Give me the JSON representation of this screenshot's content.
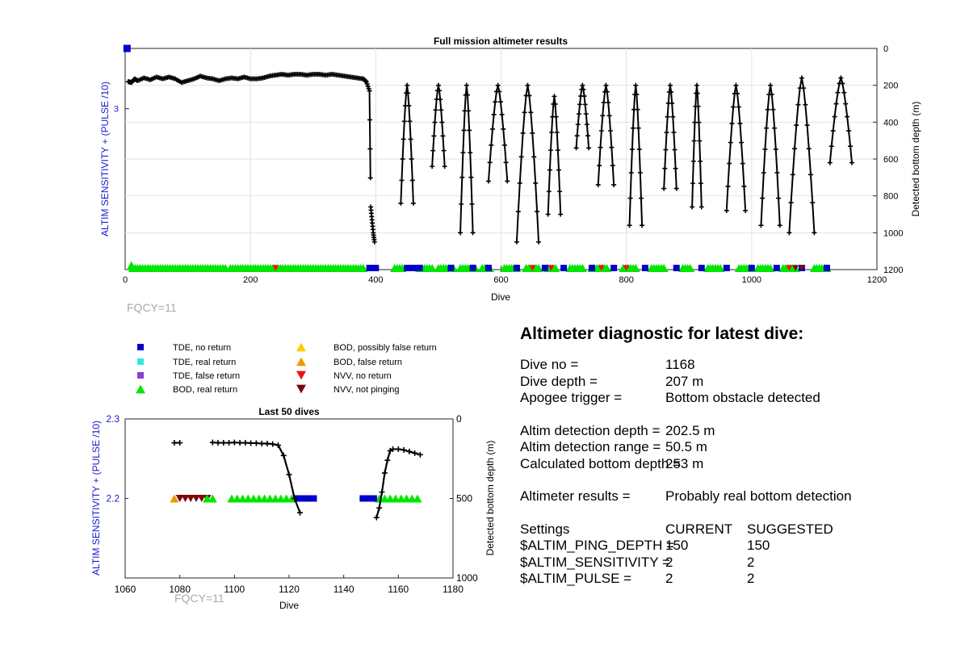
{
  "colors": {
    "tde_no_return": "#0000cc",
    "tde_real_return": "#33e6e6",
    "tde_false_return": "#8a3fcf",
    "bod_real_return": "#00e600",
    "bod_possibly_false": "#ffcc00",
    "bod_false_return": "#ee9900",
    "nvv_no_return": "#ee1111",
    "nvv_not_pinging": "#7a0a0a",
    "left_axis": "#1a1acc",
    "trace": "#000000"
  },
  "legend": [
    {
      "label": "TDE, no return",
      "marker": "square",
      "color": "#0000cc"
    },
    {
      "label": "TDE, real return",
      "marker": "square",
      "color": "#33e6e6"
    },
    {
      "label": "TDE, false return",
      "marker": "square",
      "color": "#8a3fcf"
    },
    {
      "label": "BOD, real return",
      "marker": "triangle-up",
      "color": "#00e600"
    },
    {
      "label": "BOD, possibly false return",
      "marker": "triangle-up",
      "color": "#ffcc00"
    },
    {
      "label": "BOD, false return",
      "marker": "triangle-up",
      "color": "#ee9900"
    },
    {
      "label": "NVV, no return",
      "marker": "triangle-down",
      "color": "#ee1111"
    },
    {
      "label": "NVV, not pinging",
      "marker": "triangle-down",
      "color": "#7a0a0a"
    }
  ],
  "chart_data": [
    {
      "type": "scatter",
      "title": "Full mission altimeter results",
      "xlabel": "Dive",
      "ylabel_left": "ALTIM SENSITIVITY + (PULSE /10)",
      "ylabel_right": "Detected bottom depth (m)",
      "xlim": [
        0,
        1200
      ],
      "xticks": [
        0,
        200,
        400,
        600,
        800,
        1000,
        1200
      ],
      "ylim_left": [
        2.2,
        3.3
      ],
      "yticks_left": [
        3
      ],
      "ylim_right": [
        1200,
        0
      ],
      "yticks_right": [
        0,
        200,
        400,
        600,
        800,
        1000,
        1200
      ],
      "grid": true,
      "annotation": "FQCY=11",
      "bottom_depth_series": {
        "name": "",
        "x": [
          5,
          10,
          15,
          20,
          30,
          40,
          50,
          60,
          70,
          80,
          90,
          100,
          110,
          120,
          130,
          140,
          150,
          160,
          170,
          180,
          190,
          200,
          210,
          220,
          230,
          240,
          250,
          260,
          270,
          280,
          290,
          300,
          310,
          320,
          330,
          340,
          350,
          360,
          370,
          380,
          385,
          390,
          392,
          394,
          396,
          398
        ],
        "y": [
          180,
          185,
          165,
          175,
          160,
          170,
          155,
          165,
          155,
          165,
          185,
          175,
          165,
          150,
          160,
          165,
          175,
          165,
          160,
          165,
          155,
          165,
          165,
          160,
          150,
          145,
          140,
          145,
          140,
          140,
          145,
          140,
          140,
          145,
          140,
          145,
          150,
          155,
          160,
          165,
          180,
          230,
          860,
          930,
          1000,
          1050
        ]
      },
      "bottom_depth_cycles": [
        {
          "x_start": 440,
          "x_end": 460,
          "y_top": 200,
          "y_low": 840
        },
        {
          "x_start": 490,
          "x_end": 510,
          "y_top": 200,
          "y_low": 640
        },
        {
          "x_start": 535,
          "x_end": 555,
          "y_top": 200,
          "y_low": 1000
        },
        {
          "x_start": 580,
          "x_end": 610,
          "y_top": 200,
          "y_low": 720
        },
        {
          "x_start": 625,
          "x_end": 660,
          "y_top": 200,
          "y_low": 1050
        },
        {
          "x_start": 675,
          "x_end": 695,
          "y_top": 260,
          "y_low": 900
        },
        {
          "x_start": 720,
          "x_end": 740,
          "y_top": 200,
          "y_low": 540
        },
        {
          "x_start": 755,
          "x_end": 780,
          "y_top": 200,
          "y_low": 740
        },
        {
          "x_start": 805,
          "x_end": 825,
          "y_top": 200,
          "y_low": 960
        },
        {
          "x_start": 860,
          "x_end": 880,
          "y_top": 200,
          "y_low": 760
        },
        {
          "x_start": 905,
          "x_end": 920,
          "y_top": 200,
          "y_low": 860
        },
        {
          "x_start": 960,
          "x_end": 990,
          "y_top": 200,
          "y_low": 880
        },
        {
          "x_start": 1015,
          "x_end": 1045,
          "y_top": 200,
          "y_low": 960
        },
        {
          "x_start": 1060,
          "x_end": 1100,
          "y_top": 160,
          "y_low": 1000
        },
        {
          "x_start": 1125,
          "x_end": 1160,
          "y_top": 160,
          "y_low": 620
        }
      ],
      "sensitivity_markers": [
        {
          "category": "tde_no_return",
          "x": 3,
          "y": 3.3
        },
        {
          "category": "bod_real_return",
          "x": 10,
          "y": 2.22
        }
      ],
      "bottom_strip": {
        "y": 1200,
        "green_ranges": [
          [
            12,
            160
          ],
          [
            168,
            380
          ],
          [
            430,
            445
          ],
          [
            470,
            490
          ],
          [
            500,
            525
          ],
          [
            535,
            560
          ],
          [
            570,
            585
          ],
          [
            605,
            625
          ],
          [
            640,
            660
          ],
          [
            675,
            690
          ],
          [
            710,
            730
          ],
          [
            745,
            770
          ],
          [
            795,
            815
          ],
          [
            840,
            860
          ],
          [
            890,
            905
          ],
          [
            930,
            950
          ],
          [
            980,
            1000
          ],
          [
            1010,
            1030
          ],
          [
            1050,
            1070
          ],
          [
            1100,
            1120
          ]
        ],
        "blue_points": [
          390,
          400,
          450,
          460,
          470,
          520,
          555,
          580,
          625,
          670,
          700,
          745,
          780,
          830,
          880,
          920,
          960,
          1000,
          1040,
          1080,
          1120
        ],
        "red_points": [
          240,
          650,
          680,
          760,
          800,
          1060
        ],
        "dark_red_points": [
          1070,
          1080
        ]
      }
    },
    {
      "type": "scatter",
      "title": "Last 50 dives",
      "xlabel": "Dive",
      "ylabel_left": "ALTIM SENSITIVITY + (PULSE /10)",
      "ylabel_right": "Detected bottom depth (m)",
      "xlim": [
        1060,
        1180
      ],
      "xticks": [
        1060,
        1080,
        1100,
        1120,
        1140,
        1160,
        1180
      ],
      "ylim_left": [
        2.1,
        2.3
      ],
      "yticks_left": [
        2.2,
        2.3
      ],
      "ylim_right": [
        1000,
        0
      ],
      "yticks_right": [
        0,
        500,
        1000
      ],
      "annotation": "FQCY=11",
      "depth_segments": [
        {
          "x": [
            1078,
            1080
          ],
          "y": [
            150,
            150
          ]
        },
        {
          "x": [
            1092,
            1094,
            1096,
            1098,
            1100,
            1102,
            1104,
            1106,
            1108,
            1110,
            1112,
            1114,
            1116,
            1118,
            1120,
            1122,
            1124
          ],
          "y": [
            148,
            150,
            150,
            150,
            148,
            150,
            150,
            152,
            152,
            155,
            155,
            158,
            165,
            230,
            350,
            500,
            590
          ]
        },
        {
          "x": [
            1152,
            1153,
            1154,
            1155,
            1156,
            1157,
            1158,
            1160,
            1162,
            1164,
            1166,
            1168
          ],
          "y": [
            620,
            560,
            460,
            340,
            260,
            200,
            190,
            190,
            195,
            205,
            215,
            225
          ]
        }
      ],
      "markers": [
        {
          "category": "bod_false_return",
          "x": [
            1078
          ]
        },
        {
          "category": "nvv_not_pinging",
          "x": [
            1080,
            1082,
            1084,
            1086,
            1088,
            1090
          ]
        },
        {
          "category": "bod_real_return",
          "x": [
            1090,
            1092,
            1099,
            1101,
            1103,
            1105,
            1107,
            1109,
            1111,
            1113,
            1115,
            1117,
            1119,
            1121,
            1153,
            1155,
            1157,
            1159,
            1161,
            1163,
            1165,
            1167
          ]
        },
        {
          "category": "tde_no_return",
          "x": [
            1123,
            1125,
            1127,
            1129,
            1147,
            1149,
            1151
          ]
        }
      ],
      "marker_y": 2.2
    }
  ],
  "diagnostic": {
    "title": "Altimeter diagnostic for latest dive:",
    "rows": [
      {
        "label": "Dive no =",
        "value": "1168"
      },
      {
        "label": "Dive depth =",
        "value": "207 m"
      },
      {
        "label": "Apogee trigger =",
        "value": "Bottom obstacle detected"
      }
    ],
    "rows2": [
      {
        "label": "Altim detection depth =",
        "value": "202.5 m"
      },
      {
        "label": "Altim detection range =",
        "value": "50.5 m"
      },
      {
        "label": "Calculated bottom depth =",
        "value": "253 m"
      }
    ],
    "result": {
      "label": "Altimeter results =",
      "value": "Probably real bottom detection"
    },
    "settings_header": {
      "label": "Settings",
      "current": "CURRENT",
      "suggested": "SUGGESTED"
    },
    "settings": [
      {
        "label": "$ALTIM_PING_DEPTH =",
        "current": "150",
        "suggested": "150"
      },
      {
        "label": "$ALTIM_SENSITIVITY =",
        "current": "2",
        "suggested": "2"
      },
      {
        "label": "$ALTIM_PULSE =",
        "current": "2",
        "suggested": "2"
      }
    ]
  }
}
